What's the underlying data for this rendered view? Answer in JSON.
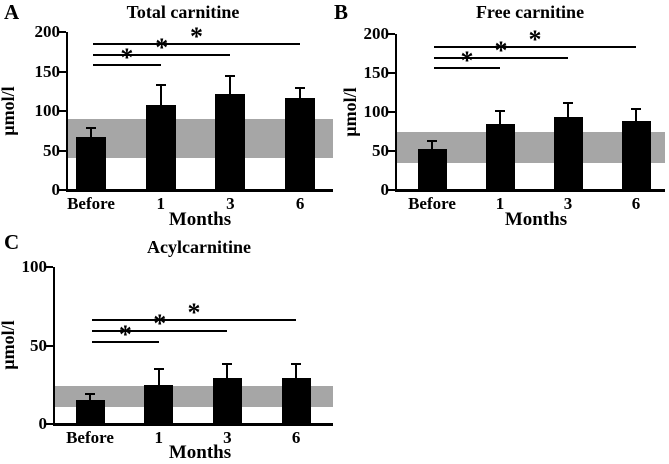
{
  "figure": {
    "background": "#ffffff",
    "bar_color": "#000000",
    "band_color": "#a6a6a6",
    "axis_color": "#000000"
  },
  "chart_data": [
    {
      "type": "bar",
      "panel_label": "A",
      "title": "Total carnitine",
      "ylabel": "μmol/l",
      "xlabel": "Months",
      "categories": [
        "Before",
        "1",
        "3",
        "6"
      ],
      "values": [
        67,
        108,
        122,
        117
      ],
      "error_upper": [
        78,
        133,
        144,
        129
      ],
      "ylim": [
        0,
        200
      ],
      "yticks": [
        0,
        50,
        100,
        150,
        200
      ],
      "reference_band": [
        41,
        90
      ],
      "significance": [
        {
          "from": "Before",
          "to": "1",
          "y": 160,
          "marker": "*"
        },
        {
          "from": "Before",
          "to": "3",
          "y": 172,
          "marker": "*"
        },
        {
          "from": "Before",
          "to": "6",
          "y": 186,
          "marker": "*"
        }
      ],
      "grid": false,
      "legend": "none"
    },
    {
      "type": "bar",
      "panel_label": "B",
      "title": "Free carnitine",
      "ylabel": "μmol/l",
      "xlabel": "Months",
      "categories": [
        "Before",
        "1",
        "3",
        "6"
      ],
      "values": [
        53,
        84,
        94,
        88
      ],
      "error_upper": [
        63,
        101,
        112,
        104
      ],
      "ylim": [
        0,
        200
      ],
      "yticks": [
        0,
        50,
        100,
        150,
        200
      ],
      "reference_band": [
        34,
        75
      ],
      "significance": [
        {
          "from": "Before",
          "to": "1",
          "y": 158,
          "marker": "*"
        },
        {
          "from": "Before",
          "to": "3",
          "y": 171,
          "marker": "*"
        },
        {
          "from": "Before",
          "to": "6",
          "y": 185,
          "marker": "*"
        }
      ],
      "grid": false,
      "legend": "none"
    },
    {
      "type": "bar",
      "panel_label": "C",
      "title": "Acylcarnitine",
      "ylabel": "μmol/l",
      "xlabel": "Months",
      "categories": [
        "Before",
        "1",
        "3",
        "6"
      ],
      "values": [
        15,
        25,
        29,
        29
      ],
      "error_upper": [
        19,
        35,
        38,
        38
      ],
      "ylim": [
        0,
        100
      ],
      "yticks": [
        0,
        50,
        100
      ],
      "reference_band": [
        11,
        24
      ],
      "significance": [
        {
          "from": "Before",
          "to": "1",
          "y": 53,
          "marker": "*"
        },
        {
          "from": "Before",
          "to": "3",
          "y": 60,
          "marker": "*"
        },
        {
          "from": "Before",
          "to": "6",
          "y": 67,
          "marker": "*"
        }
      ],
      "grid": false,
      "legend": "none"
    }
  ]
}
